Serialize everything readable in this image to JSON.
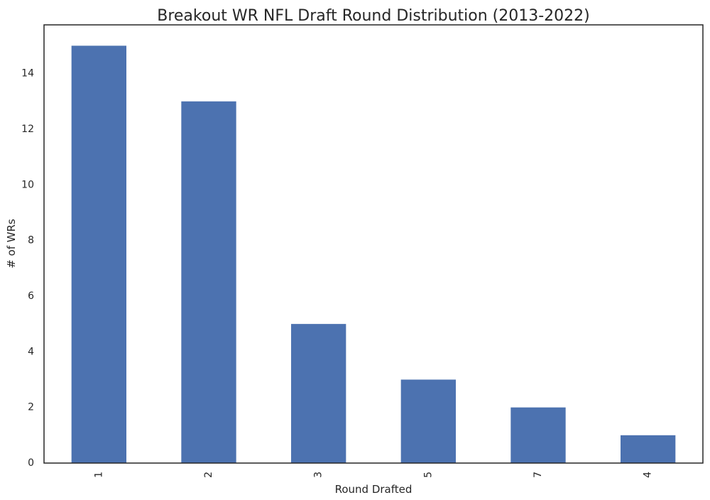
{
  "chart_data": {
    "type": "bar",
    "title": "Breakout WR NFL Draft Round Distribution (2013-2022)",
    "xlabel": "Round Drafted",
    "ylabel": "# of WRs",
    "categories": [
      "1",
      "2",
      "3",
      "5",
      "7",
      "4"
    ],
    "values": [
      15,
      13,
      5,
      3,
      2,
      1
    ],
    "ylim": [
      0,
      15.75
    ],
    "yticks": [
      0,
      2,
      4,
      6,
      8,
      10,
      12,
      14
    ],
    "grid": false,
    "legend": "none",
    "bar_color": "#4c72b0"
  }
}
